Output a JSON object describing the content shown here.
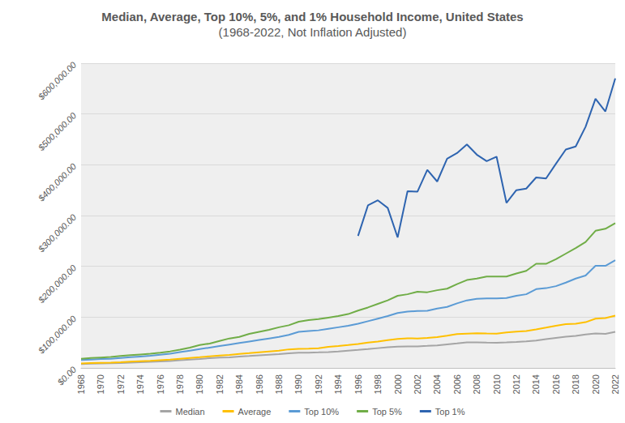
{
  "chart_data": {
    "type": "line",
    "title": "Median, Average, Top 10%, 5%, and 1% Household Income, United States",
    "subtitle": "(1968-2022, Not Inflation Adjusted)",
    "categories": [
      "1968",
      null,
      "1970",
      null,
      "1972",
      null,
      "1974",
      null,
      "1976",
      null,
      "1978",
      null,
      "1980",
      null,
      "1982",
      null,
      "1984",
      null,
      "1986",
      null,
      "1988",
      null,
      "1990",
      null,
      "1992",
      null,
      "1994",
      null,
      "1996",
      null,
      "1998",
      null,
      "2000",
      null,
      "2002",
      null,
      "2004",
      null,
      "2006",
      null,
      "2008",
      null,
      "2010",
      null,
      "2012",
      null,
      "2014",
      null,
      "2016",
      null,
      "2018",
      null,
      "2020",
      null,
      "2022"
    ],
    "series": [
      {
        "name": "Median",
        "color": "#a5a5a5",
        "values": [
          7700,
          8400,
          8700,
          9000,
          9700,
          10500,
          11200,
          11800,
          12700,
          13600,
          15100,
          16500,
          17700,
          19100,
          20200,
          20900,
          22400,
          23600,
          24900,
          26100,
          27200,
          28900,
          29900,
          30100,
          30600,
          31200,
          32300,
          34100,
          35500,
          37000,
          38900,
          40700,
          41900,
          42200,
          42400,
          43300,
          44300,
          46300,
          48200,
          50200,
          50300,
          49800,
          49400,
          50100,
          51000,
          52200,
          53700,
          56500,
          59000,
          61400,
          63200,
          66000,
          68000,
          67000,
          71000
        ]
      },
      {
        "name": "Average",
        "color": "#ffc000",
        "values": [
          8800,
          9400,
          10000,
          10300,
          11200,
          12200,
          13100,
          14000,
          15200,
          16400,
          18100,
          19700,
          21100,
          22800,
          24300,
          25400,
          27500,
          29100,
          30800,
          32400,
          34000,
          36500,
          37400,
          37900,
          38800,
          41400,
          43100,
          44900,
          47100,
          49700,
          51900,
          54700,
          57100,
          58200,
          58000,
          59100,
          60500,
          63300,
          66600,
          67600,
          68400,
          67900,
          67500,
          69700,
          71300,
          72600,
          75700,
          79300,
          83100,
          86200,
          87000,
          90000,
          97000,
          98000,
          103000
        ]
      },
      {
        "name": "Top 10%",
        "color": "#5b9bd5",
        "values": [
          15500,
          16500,
          17500,
          18000,
          19500,
          21000,
          22500,
          24000,
          26000,
          28000,
          31000,
          34000,
          37000,
          40000,
          43000,
          46000,
          49000,
          52000,
          55000,
          58000,
          61000,
          65000,
          71000,
          72500,
          74000,
          77000,
          80000,
          83000,
          87000,
          92000,
          97000,
          102000,
          108000,
          111000,
          112000,
          112500,
          117000,
          120000,
          127000,
          133000,
          136000,
          137000,
          137000,
          137500,
          142000,
          145000,
          155000,
          157000,
          161000,
          168000,
          176000,
          182000,
          201000,
          201000,
          212000
        ]
      },
      {
        "name": "Top 5%",
        "color": "#70ad47",
        "values": [
          18000,
          19500,
          20500,
          21500,
          23500,
          25000,
          26500,
          28000,
          30000,
          32500,
          36000,
          40000,
          45000,
          48000,
          53000,
          58000,
          61000,
          67000,
          71000,
          75000,
          80000,
          84000,
          91000,
          94000,
          96000,
          99000,
          102000,
          106000,
          113000,
          119000,
          126000,
          133000,
          142000,
          145000,
          150000,
          149000,
          153000,
          156000,
          165000,
          173000,
          176000,
          180000,
          180000,
          180000,
          186000,
          191000,
          205000,
          205000,
          214000,
          225000,
          236000,
          248000,
          270000,
          274000,
          285000
        ]
      },
      {
        "name": "Top 1%",
        "color": "#2e64b0",
        "values": [
          null,
          null,
          null,
          null,
          null,
          null,
          null,
          null,
          null,
          null,
          null,
          null,
          null,
          null,
          null,
          null,
          null,
          null,
          null,
          null,
          null,
          null,
          null,
          null,
          null,
          null,
          null,
          null,
          260000,
          320000,
          330000,
          315000,
          257000,
          348000,
          347000,
          390000,
          367000,
          412000,
          423000,
          440000,
          420000,
          407000,
          416000,
          325000,
          350000,
          353000,
          375000,
          373000,
          402000,
          430000,
          436000,
          475000,
          530000,
          505000,
          570000
        ]
      }
    ],
    "ylim": [
      0,
      600000
    ],
    "yticks": [
      {
        "value": 0,
        "label": "$0.00"
      },
      {
        "value": 100000,
        "label": "$100,000.00"
      },
      {
        "value": 200000,
        "label": "$200,000.00"
      },
      {
        "value": 300000,
        "label": "$300,000.00"
      },
      {
        "value": 400000,
        "label": "$400,000.00"
      },
      {
        "value": 500000,
        "label": "$500,000.00"
      },
      {
        "value": 600000,
        "label": "$600,000.00"
      }
    ],
    "grid": true,
    "legend": "bottom",
    "marker": "none",
    "line_style": "solid"
  }
}
